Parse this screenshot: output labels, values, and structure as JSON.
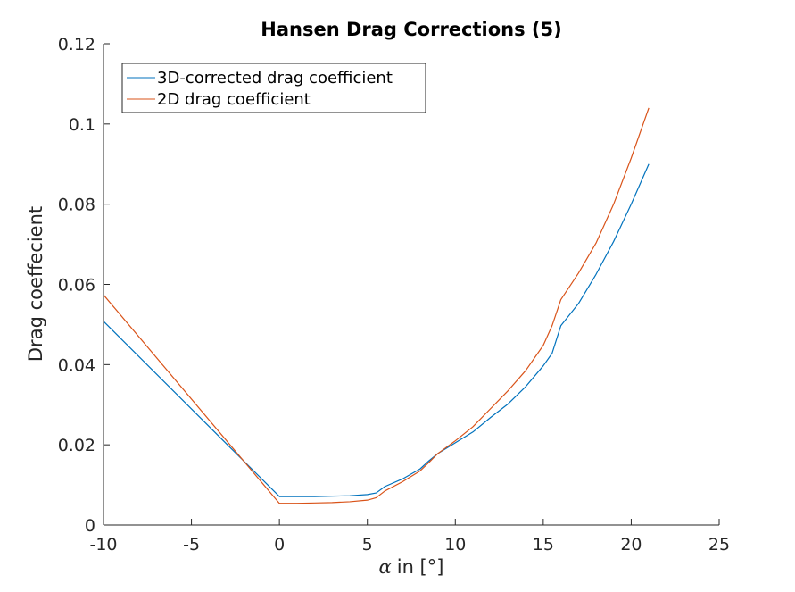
{
  "chart_data": {
    "type": "line",
    "title": "Hansen Drag Corrections (5)",
    "xlabel": "in [°]",
    "xlabel_symbol": "α",
    "ylabel": "Drag coeffecient",
    "xlim": [
      -10,
      25
    ],
    "ylim": [
      0,
      0.12
    ],
    "xticks": [
      -10,
      -5,
      0,
      5,
      10,
      15,
      20,
      25
    ],
    "xtick_labels": [
      "-10",
      "-5",
      "0",
      "5",
      "10",
      "15",
      "20",
      "25"
    ],
    "yticks": [
      0,
      0.02,
      0.04,
      0.06,
      0.08,
      0.1,
      0.12
    ],
    "ytick_labels": [
      "0",
      "0.02",
      "0.04",
      "0.06",
      "0.08",
      "0.1",
      "0.12"
    ],
    "grid": false,
    "legend_position": "top-left",
    "series": [
      {
        "name": "3D-corrected drag coefficient",
        "color": "#0072BD",
        "x": [
          -10,
          0,
          1,
          2,
          3,
          4,
          5,
          5.5,
          6,
          7,
          8,
          8.5,
          9,
          10,
          11,
          12,
          13,
          14,
          15,
          15.5,
          16,
          17,
          18,
          19,
          20,
          21
        ],
        "y": [
          0.0508,
          0.0071,
          0.0071,
          0.0071,
          0.0072,
          0.0073,
          0.0076,
          0.008,
          0.0096,
          0.0115,
          0.014,
          0.016,
          0.0178,
          0.0205,
          0.0232,
          0.0268,
          0.0302,
          0.0345,
          0.0397,
          0.0428,
          0.0497,
          0.0552,
          0.0625,
          0.0707,
          0.08,
          0.09
        ]
      },
      {
        "name": "2D drag coefficient",
        "color": "#D95319",
        "x": [
          -10,
          0,
          1,
          2,
          3,
          4,
          5,
          5.5,
          6,
          7,
          8,
          8.5,
          9,
          10,
          11,
          12,
          13,
          14,
          15,
          15.5,
          16,
          17,
          18,
          19,
          20,
          21
        ],
        "y": [
          0.0574,
          0.0054,
          0.0054,
          0.0055,
          0.0056,
          0.0058,
          0.0062,
          0.0068,
          0.0085,
          0.0108,
          0.0135,
          0.0156,
          0.0178,
          0.021,
          0.0245,
          0.029,
          0.0335,
          0.0385,
          0.0448,
          0.0497,
          0.0562,
          0.0628,
          0.0703,
          0.08,
          0.0915,
          0.104
        ]
      }
    ]
  }
}
